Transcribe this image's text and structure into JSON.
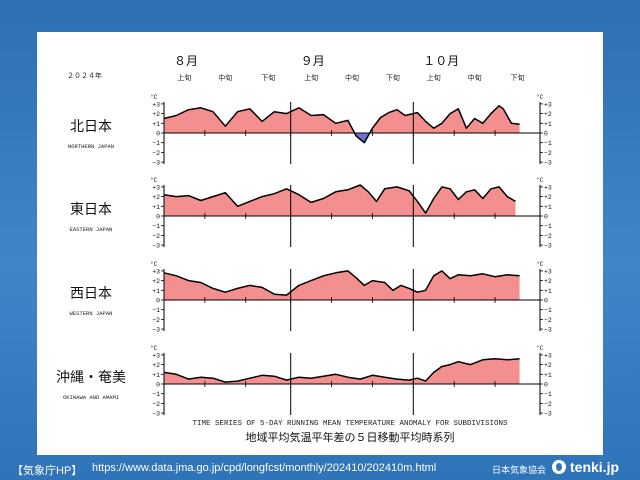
{
  "colors": {
    "positive_fill": "#f48f8f",
    "negative_fill": "#6f6fd6",
    "line": "#000000",
    "background": "#2f73b8"
  },
  "footer": {
    "source_label": "【気象庁HP】",
    "source_url": "https://www.data.jma.go.jp/cpd/longfcst/monthly/202410/202410m.html",
    "credit": "日本気象協会",
    "brand": "tenki.jp",
    "brand_icon": "tenki-logo-icon"
  },
  "chart_data": {
    "type": "area",
    "year_label": "２０２４年",
    "months": [
      "８月",
      "９月",
      "１０月"
    ],
    "dekads": [
      "上旬",
      "中旬",
      "下旬",
      "上旬",
      "中旬",
      "下旬",
      "上旬",
      "中旬",
      "下旬"
    ],
    "unit": "°C",
    "yticks": [
      "+3",
      "+2",
      "+1",
      "0",
      "-1",
      "-2",
      "-3"
    ],
    "ylim": [
      -3,
      3
    ],
    "x_days": [
      0,
      92
    ],
    "x_note": "day index from Aug 1 (0) to Oct 31 (92)",
    "title_en": "TIME SERIES OF 5-DAY RUNNING MEAN TEMPERATURE ANOMALY FOR SUBDIVISIONS",
    "title_ja": "地域平均気温平年差の５日移動平均時系列",
    "series": [
      {
        "name": "北日本",
        "name_en": "NORTHERN JAPAN",
        "points": [
          [
            0,
            1.5
          ],
          [
            3,
            1.8
          ],
          [
            6,
            2.4
          ],
          [
            9,
            2.6
          ],
          [
            12,
            2.2
          ],
          [
            15,
            0.7
          ],
          [
            18,
            2.2
          ],
          [
            21,
            2.5
          ],
          [
            24,
            1.2
          ],
          [
            27,
            2.2
          ],
          [
            30,
            2.0
          ],
          [
            33,
            2.6
          ],
          [
            36,
            1.8
          ],
          [
            39,
            1.9
          ],
          [
            42,
            1.0
          ],
          [
            45,
            1.3
          ],
          [
            47,
            -0.3
          ],
          [
            49,
            -1.0
          ],
          [
            51,
            0.5
          ],
          [
            53,
            1.6
          ],
          [
            55,
            2.1
          ],
          [
            57,
            2.4
          ],
          [
            59,
            1.8
          ],
          [
            62,
            2.1
          ],
          [
            64,
            1.2
          ],
          [
            66,
            0.5
          ],
          [
            68,
            1.0
          ],
          [
            70,
            2.0
          ],
          [
            72,
            2.5
          ],
          [
            74,
            0.5
          ],
          [
            76,
            1.5
          ],
          [
            78,
            1.0
          ],
          [
            80,
            2.0
          ],
          [
            82,
            2.8
          ],
          [
            83,
            2.5
          ],
          [
            85,
            1.0
          ],
          [
            87,
            0.9
          ]
        ]
      },
      {
        "name": "東日本",
        "name_en": "EASTERN JAPAN",
        "points": [
          [
            0,
            2.2
          ],
          [
            3,
            2.0
          ],
          [
            6,
            2.1
          ],
          [
            9,
            1.6
          ],
          [
            12,
            2.0
          ],
          [
            15,
            2.4
          ],
          [
            18,
            1.0
          ],
          [
            21,
            1.5
          ],
          [
            24,
            2.0
          ],
          [
            27,
            2.3
          ],
          [
            30,
            2.8
          ],
          [
            33,
            2.2
          ],
          [
            36,
            1.4
          ],
          [
            39,
            1.8
          ],
          [
            42,
            2.5
          ],
          [
            45,
            2.7
          ],
          [
            48,
            3.2
          ],
          [
            50,
            2.5
          ],
          [
            52,
            1.5
          ],
          [
            54,
            2.8
          ],
          [
            57,
            3.0
          ],
          [
            60,
            2.6
          ],
          [
            62,
            1.5
          ],
          [
            64,
            0.3
          ],
          [
            66,
            1.8
          ],
          [
            68,
            3.0
          ],
          [
            70,
            2.8
          ],
          [
            72,
            1.7
          ],
          [
            74,
            2.5
          ],
          [
            76,
            2.7
          ],
          [
            78,
            1.8
          ],
          [
            80,
            2.8
          ],
          [
            82,
            3.0
          ],
          [
            84,
            2.0
          ],
          [
            86,
            1.5
          ]
        ]
      },
      {
        "name": "西日本",
        "name_en": "WESTERN JAPAN",
        "points": [
          [
            0,
            2.8
          ],
          [
            3,
            2.5
          ],
          [
            6,
            2.0
          ],
          [
            9,
            1.8
          ],
          [
            12,
            1.2
          ],
          [
            15,
            0.8
          ],
          [
            18,
            1.2
          ],
          [
            21,
            1.5
          ],
          [
            24,
            1.3
          ],
          [
            27,
            0.6
          ],
          [
            30,
            0.5
          ],
          [
            33,
            1.5
          ],
          [
            36,
            2.0
          ],
          [
            39,
            2.5
          ],
          [
            42,
            2.8
          ],
          [
            45,
            3.0
          ],
          [
            47,
            2.3
          ],
          [
            49,
            1.5
          ],
          [
            51,
            2.0
          ],
          [
            54,
            1.8
          ],
          [
            56,
            1.0
          ],
          [
            58,
            1.5
          ],
          [
            60,
            1.2
          ],
          [
            62,
            0.8
          ],
          [
            64,
            1.0
          ],
          [
            66,
            2.5
          ],
          [
            68,
            3.0
          ],
          [
            70,
            2.2
          ],
          [
            72,
            2.6
          ],
          [
            75,
            2.5
          ],
          [
            78,
            2.7
          ],
          [
            81,
            2.4
          ],
          [
            84,
            2.6
          ],
          [
            87,
            2.5
          ]
        ]
      },
      {
        "name": "沖縄・奄美",
        "name_en": "OKINAWA AND AMAMI",
        "points": [
          [
            0,
            1.2
          ],
          [
            3,
            1.0
          ],
          [
            6,
            0.5
          ],
          [
            9,
            0.7
          ],
          [
            12,
            0.6
          ],
          [
            15,
            0.2
          ],
          [
            18,
            0.3
          ],
          [
            21,
            0.6
          ],
          [
            24,
            0.9
          ],
          [
            27,
            0.8
          ],
          [
            30,
            0.4
          ],
          [
            33,
            0.7
          ],
          [
            36,
            0.6
          ],
          [
            39,
            0.8
          ],
          [
            42,
            1.0
          ],
          [
            45,
            0.7
          ],
          [
            48,
            0.5
          ],
          [
            51,
            0.9
          ],
          [
            54,
            0.7
          ],
          [
            57,
            0.5
          ],
          [
            60,
            0.4
          ],
          [
            62,
            0.6
          ],
          [
            64,
            0.3
          ],
          [
            66,
            1.2
          ],
          [
            68,
            1.8
          ],
          [
            70,
            2.0
          ],
          [
            72,
            2.3
          ],
          [
            75,
            2.0
          ],
          [
            78,
            2.5
          ],
          [
            81,
            2.6
          ],
          [
            84,
            2.5
          ],
          [
            87,
            2.6
          ]
        ]
      }
    ]
  }
}
